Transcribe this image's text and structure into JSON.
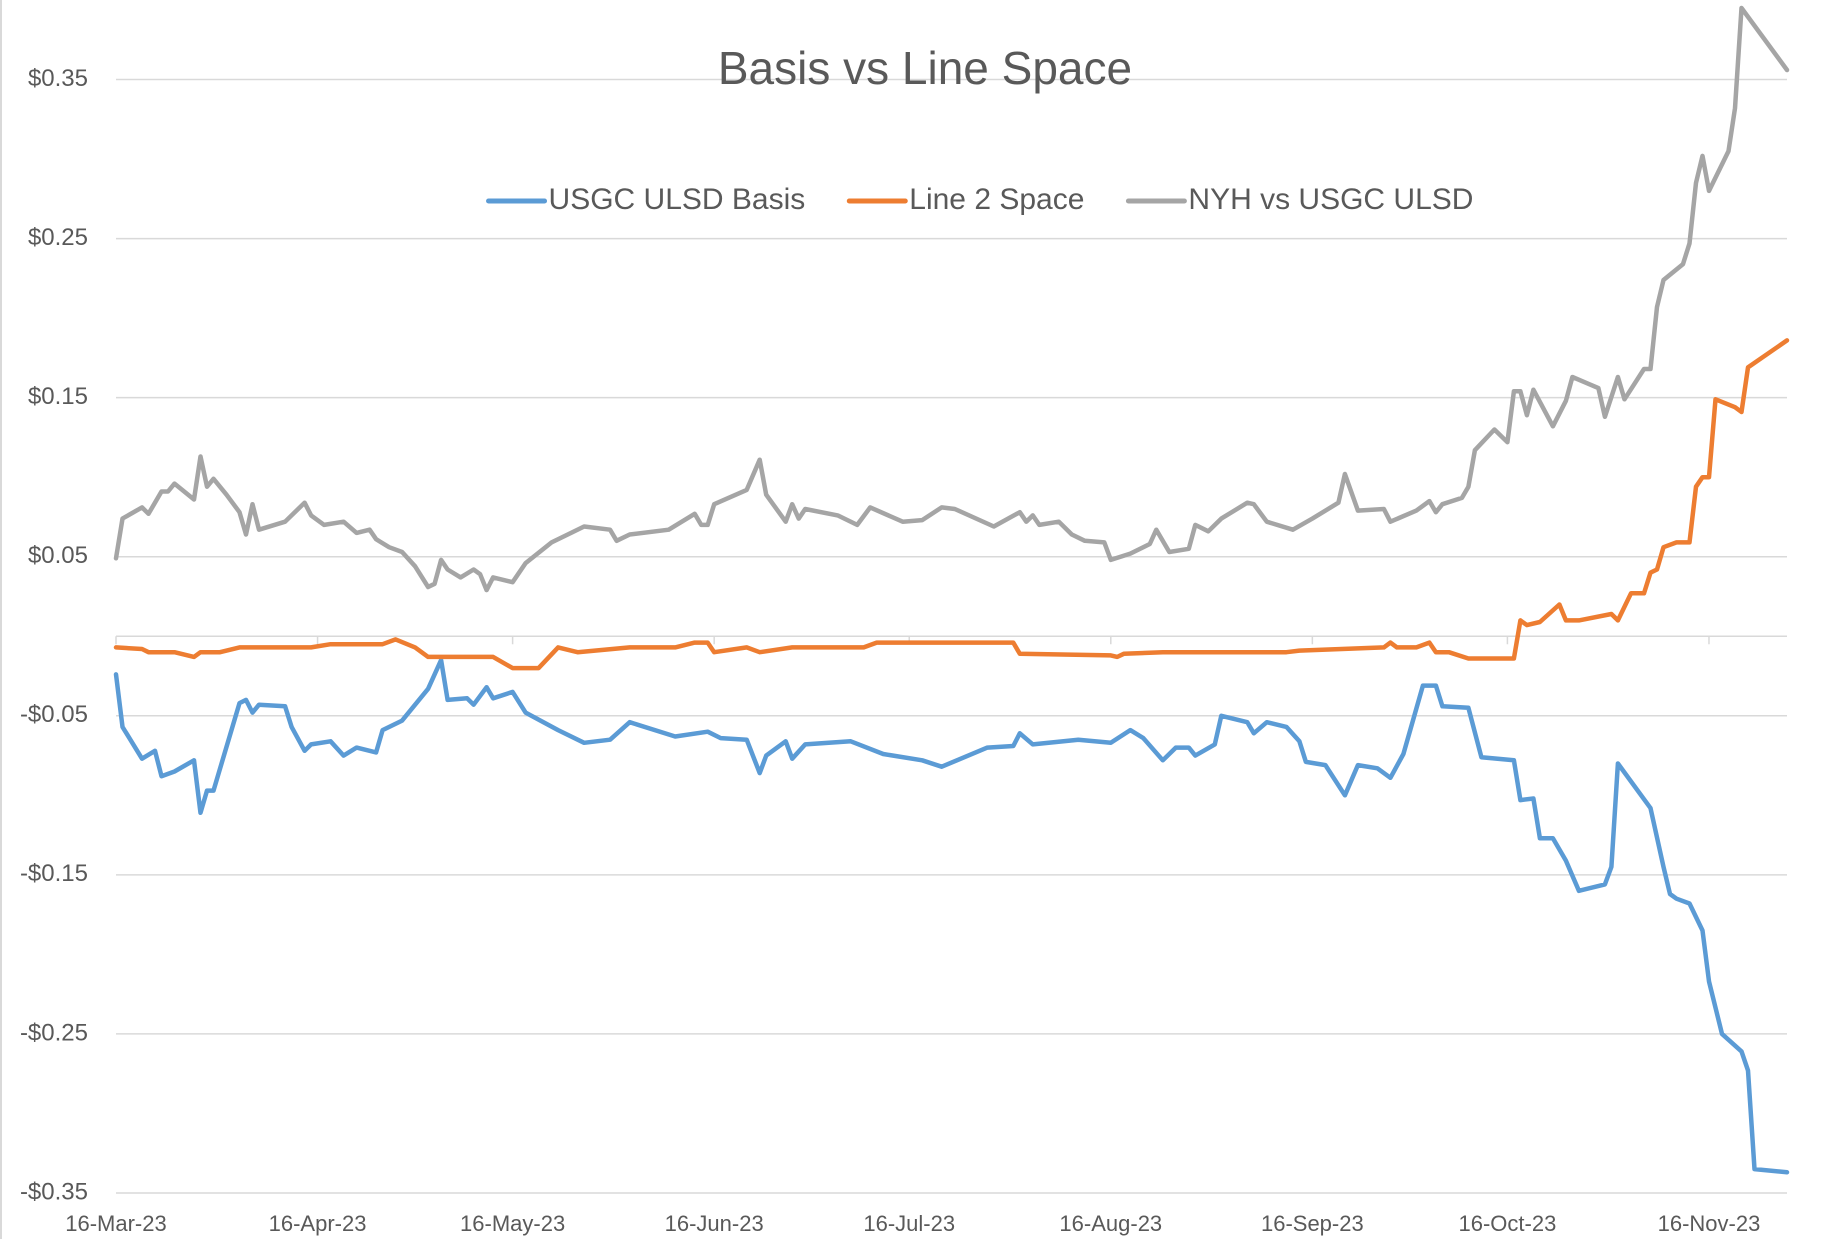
{
  "chart_data": {
    "type": "line",
    "title": "Basis vs Line Space",
    "xlim": [
      "2023-03-16",
      "2023-11-28"
    ],
    "xticks": [
      {
        "value": "2023-03-16",
        "label": "16-Mar-23"
      },
      {
        "value": "2023-04-16",
        "label": "16-Apr-23"
      },
      {
        "value": "2023-05-16",
        "label": "16-May-23"
      },
      {
        "value": "2023-06-16",
        "label": "16-Jun-23"
      },
      {
        "value": "2023-07-16",
        "label": "16-Jul-23"
      },
      {
        "value": "2023-08-16",
        "label": "16-Aug-23"
      },
      {
        "value": "2023-09-16",
        "label": "16-Sep-23"
      },
      {
        "value": "2023-10-16",
        "label": "16-Oct-23"
      },
      {
        "value": "2023-11-16",
        "label": "16-Nov-23"
      }
    ],
    "ylim": [
      -0.35,
      0.4
    ],
    "yticks": [
      {
        "value": -0.35,
        "label": "-$0.35"
      },
      {
        "value": -0.25,
        "label": "-$0.25"
      },
      {
        "value": -0.15,
        "label": "-$0.15"
      },
      {
        "value": -0.05,
        "label": "-$0.05"
      },
      {
        "value": 0.05,
        "label": "$0.05"
      },
      {
        "value": 0.15,
        "label": "$0.15"
      },
      {
        "value": 0.25,
        "label": "$0.25"
      },
      {
        "value": 0.35,
        "label": "$0.35"
      }
    ],
    "grid": true,
    "legend": "top",
    "series": [
      {
        "name": "USGC ULSD Basis",
        "color": "#5b9bd5",
        "x": [
          "2023-03-16",
          "2023-03-17",
          "2023-03-20",
          "2023-03-22",
          "2023-03-23",
          "2023-03-25",
          "2023-03-28",
          "2023-03-29",
          "2023-03-30",
          "2023-03-31",
          "2023-04-04",
          "2023-04-05",
          "2023-04-06",
          "2023-04-07",
          "2023-04-11",
          "2023-04-12",
          "2023-04-14",
          "2023-04-15",
          "2023-04-18",
          "2023-04-20",
          "2023-04-22",
          "2023-04-25",
          "2023-04-26",
          "2023-04-29",
          "2023-05-03",
          "2023-05-05",
          "2023-05-06",
          "2023-05-09",
          "2023-05-10",
          "2023-05-12",
          "2023-05-13",
          "2023-05-16",
          "2023-05-18",
          "2023-05-23",
          "2023-05-27",
          "2023-05-31",
          "2023-06-03",
          "2023-06-10",
          "2023-06-15",
          "2023-06-17",
          "2023-06-21",
          "2023-06-23",
          "2023-06-24",
          "2023-06-27",
          "2023-06-28",
          "2023-06-30",
          "2023-07-07",
          "2023-07-12",
          "2023-07-18",
          "2023-07-21",
          "2023-07-28",
          "2023-08-01",
          "2023-08-02",
          "2023-08-04",
          "2023-08-11",
          "2023-08-16",
          "2023-08-19",
          "2023-08-21",
          "2023-08-24",
          "2023-08-26",
          "2023-08-28",
          "2023-08-29",
          "2023-09-01",
          "2023-09-02",
          "2023-09-06",
          "2023-09-07",
          "2023-09-09",
          "2023-09-12",
          "2023-09-14",
          "2023-09-15",
          "2023-09-18",
          "2023-09-21",
          "2023-09-23",
          "2023-09-26",
          "2023-09-28",
          "2023-09-30",
          "2023-10-03",
          "2023-10-05",
          "2023-10-06",
          "2023-10-10",
          "2023-10-12",
          "2023-10-17",
          "2023-10-18",
          "2023-10-20",
          "2023-10-21",
          "2023-10-23",
          "2023-10-25",
          "2023-10-27",
          "2023-10-31",
          "2023-11-01",
          "2023-11-02",
          "2023-11-07",
          "2023-11-09",
          "2023-11-10",
          "2023-11-11",
          "2023-11-13",
          "2023-11-15",
          "2023-11-16",
          "2023-11-18",
          "2023-11-21",
          "2023-11-22",
          "2023-11-23",
          "2023-11-28"
        ],
        "values": [
          -0.024,
          -0.057,
          -0.077,
          -0.072,
          -0.088,
          -0.085,
          -0.078,
          -0.111,
          -0.097,
          -0.097,
          -0.042,
          -0.04,
          -0.048,
          -0.043,
          -0.044,
          -0.057,
          -0.072,
          -0.068,
          -0.066,
          -0.075,
          -0.07,
          -0.073,
          -0.059,
          -0.053,
          -0.033,
          -0.015,
          -0.04,
          -0.039,
          -0.043,
          -0.032,
          -0.039,
          -0.035,
          -0.048,
          -0.059,
          -0.067,
          -0.065,
          -0.054,
          -0.063,
          -0.06,
          -0.064,
          -0.065,
          -0.086,
          -0.075,
          -0.066,
          -0.077,
          -0.068,
          -0.066,
          -0.074,
          -0.078,
          -0.082,
          -0.07,
          -0.069,
          -0.061,
          -0.068,
          -0.065,
          -0.067,
          -0.059,
          -0.064,
          -0.078,
          -0.07,
          -0.07,
          -0.075,
          -0.068,
          -0.05,
          -0.054,
          -0.061,
          -0.054,
          -0.057,
          -0.066,
          -0.079,
          -0.081,
          -0.1,
          -0.081,
          -0.083,
          -0.089,
          -0.074,
          -0.031,
          -0.031,
          -0.044,
          -0.045,
          -0.076,
          -0.078,
          -0.103,
          -0.102,
          -0.127,
          -0.127,
          -0.141,
          -0.16,
          -0.156,
          -0.145,
          -0.08,
          -0.108,
          -0.145,
          -0.162,
          -0.165,
          -0.168,
          -0.185,
          -0.217,
          -0.25,
          -0.261,
          -0.273,
          -0.335,
          -0.337
        ]
      },
      {
        "name": "Line 2 Space",
        "color": "#ed7d31",
        "x": [
          "2023-03-16",
          "2023-03-20",
          "2023-03-21",
          "2023-03-25",
          "2023-03-28",
          "2023-03-29",
          "2023-04-01",
          "2023-04-04",
          "2023-04-15",
          "2023-04-18",
          "2023-04-26",
          "2023-04-28",
          "2023-05-01",
          "2023-05-03",
          "2023-05-13",
          "2023-05-16",
          "2023-05-20",
          "2023-05-23",
          "2023-05-26",
          "2023-06-03",
          "2023-06-10",
          "2023-06-13",
          "2023-06-15",
          "2023-06-16",
          "2023-06-21",
          "2023-06-23",
          "2023-06-28",
          "2023-07-09",
          "2023-07-11",
          "2023-08-01",
          "2023-08-02",
          "2023-08-16",
          "2023-08-17",
          "2023-08-18",
          "2023-08-24",
          "2023-08-29",
          "2023-09-12",
          "2023-09-14",
          "2023-09-27",
          "2023-09-28",
          "2023-09-29",
          "2023-10-02",
          "2023-10-04",
          "2023-10-05",
          "2023-10-07",
          "2023-10-10",
          "2023-10-17",
          "2023-10-18",
          "2023-10-19",
          "2023-10-21",
          "2023-10-24",
          "2023-10-25",
          "2023-10-27",
          "2023-11-01",
          "2023-11-02",
          "2023-11-04",
          "2023-11-06",
          "2023-11-07",
          "2023-11-08",
          "2023-11-09",
          "2023-11-11",
          "2023-11-13",
          "2023-11-14",
          "2023-11-15",
          "2023-11-16",
          "2023-11-17",
          "2023-11-20",
          "2023-11-21",
          "2023-11-22",
          "2023-11-28"
        ],
        "values": [
          -0.007,
          -0.008,
          -0.01,
          -0.01,
          -0.013,
          -0.01,
          -0.01,
          -0.007,
          -0.007,
          -0.005,
          -0.005,
          -0.002,
          -0.007,
          -0.013,
          -0.013,
          -0.02,
          -0.02,
          -0.007,
          -0.01,
          -0.007,
          -0.007,
          -0.004,
          -0.004,
          -0.01,
          -0.007,
          -0.01,
          -0.007,
          -0.007,
          -0.004,
          -0.004,
          -0.011,
          -0.012,
          -0.013,
          -0.011,
          -0.01,
          -0.01,
          -0.01,
          -0.009,
          -0.007,
          -0.004,
          -0.007,
          -0.007,
          -0.004,
          -0.01,
          -0.01,
          -0.014,
          -0.014,
          0.01,
          0.007,
          0.009,
          0.02,
          0.01,
          0.01,
          0.014,
          0.01,
          0.027,
          0.027,
          0.04,
          0.042,
          0.056,
          0.059,
          0.059,
          0.094,
          0.1,
          0.1,
          0.149,
          0.144,
          0.141,
          0.169,
          0.186
        ]
      },
      {
        "name": "NYH vs USGC ULSD",
        "color": "#a5a5a5",
        "x": [
          "2023-03-16",
          "2023-03-17",
          "2023-03-20",
          "2023-03-21",
          "2023-03-23",
          "2023-03-24",
          "2023-03-25",
          "2023-03-28",
          "2023-03-29",
          "2023-03-30",
          "2023-03-31",
          "2023-04-02",
          "2023-04-04",
          "2023-04-05",
          "2023-04-06",
          "2023-04-07",
          "2023-04-11",
          "2023-04-14",
          "2023-04-15",
          "2023-04-17",
          "2023-04-20",
          "2023-04-22",
          "2023-04-24",
          "2023-04-25",
          "2023-04-27",
          "2023-04-29",
          "2023-05-01",
          "2023-05-03",
          "2023-05-04",
          "2023-05-05",
          "2023-05-06",
          "2023-05-08",
          "2023-05-10",
          "2023-05-11",
          "2023-05-12",
          "2023-05-13",
          "2023-05-16",
          "2023-05-18",
          "2023-05-22",
          "2023-05-25",
          "2023-05-27",
          "2023-05-31",
          "2023-06-01",
          "2023-06-03",
          "2023-06-09",
          "2023-06-13",
          "2023-06-14",
          "2023-06-15",
          "2023-06-16",
          "2023-06-21",
          "2023-06-23",
          "2023-06-24",
          "2023-06-27",
          "2023-06-28",
          "2023-06-29",
          "2023-06-30",
          "2023-07-05",
          "2023-07-08",
          "2023-07-10",
          "2023-07-15",
          "2023-07-18",
          "2023-07-21",
          "2023-07-23",
          "2023-07-29",
          "2023-08-02",
          "2023-08-03",
          "2023-08-04",
          "2023-08-05",
          "2023-08-08",
          "2023-08-10",
          "2023-08-12",
          "2023-08-15",
          "2023-08-16",
          "2023-08-19",
          "2023-08-22",
          "2023-08-23",
          "2023-08-25",
          "2023-08-28",
          "2023-08-29",
          "2023-08-31",
          "2023-09-02",
          "2023-09-06",
          "2023-09-07",
          "2023-09-09",
          "2023-09-13",
          "2023-09-16",
          "2023-09-20",
          "2023-09-21",
          "2023-09-23",
          "2023-09-27",
          "2023-09-28",
          "2023-10-02",
          "2023-10-04",
          "2023-10-05",
          "2023-10-06",
          "2023-10-09",
          "2023-10-10",
          "2023-10-11",
          "2023-10-14",
          "2023-10-16",
          "2023-10-17",
          "2023-10-18",
          "2023-10-19",
          "2023-10-20",
          "2023-10-23",
          "2023-10-25",
          "2023-10-26",
          "2023-10-30",
          "2023-10-31",
          "2023-11-02",
          "2023-11-03",
          "2023-11-06",
          "2023-11-07",
          "2023-11-08",
          "2023-11-09",
          "2023-11-12",
          "2023-11-13",
          "2023-11-14",
          "2023-11-15",
          "2023-11-16",
          "2023-11-19",
          "2023-11-20",
          "2023-11-21",
          "2023-11-28"
        ],
        "values": [
          0.049,
          0.074,
          0.081,
          0.077,
          0.091,
          0.091,
          0.096,
          0.086,
          0.113,
          0.094,
          0.099,
          0.089,
          0.078,
          0.064,
          0.083,
          0.067,
          0.072,
          0.084,
          0.076,
          0.07,
          0.072,
          0.065,
          0.067,
          0.061,
          0.056,
          0.053,
          0.044,
          0.031,
          0.033,
          0.048,
          0.042,
          0.037,
          0.042,
          0.039,
          0.029,
          0.037,
          0.034,
          0.046,
          0.059,
          0.065,
          0.069,
          0.067,
          0.06,
          0.064,
          0.067,
          0.077,
          0.07,
          0.07,
          0.083,
          0.092,
          0.111,
          0.089,
          0.072,
          0.083,
          0.074,
          0.08,
          0.076,
          0.07,
          0.081,
          0.072,
          0.073,
          0.081,
          0.08,
          0.069,
          0.078,
          0.072,
          0.076,
          0.07,
          0.072,
          0.064,
          0.06,
          0.059,
          0.048,
          0.052,
          0.058,
          0.067,
          0.053,
          0.055,
          0.07,
          0.066,
          0.074,
          0.084,
          0.083,
          0.072,
          0.067,
          0.074,
          0.084,
          0.102,
          0.079,
          0.08,
          0.072,
          0.079,
          0.085,
          0.078,
          0.083,
          0.087,
          0.094,
          0.117,
          0.13,
          0.122,
          0.154,
          0.154,
          0.139,
          0.155,
          0.132,
          0.148,
          0.163,
          0.156,
          0.138,
          0.163,
          0.149,
          0.168,
          0.168,
          0.207,
          0.224,
          0.234,
          0.247,
          0.285,
          0.302,
          0.28,
          0.305,
          0.332,
          0.395,
          0.356
        ]
      }
    ]
  }
}
